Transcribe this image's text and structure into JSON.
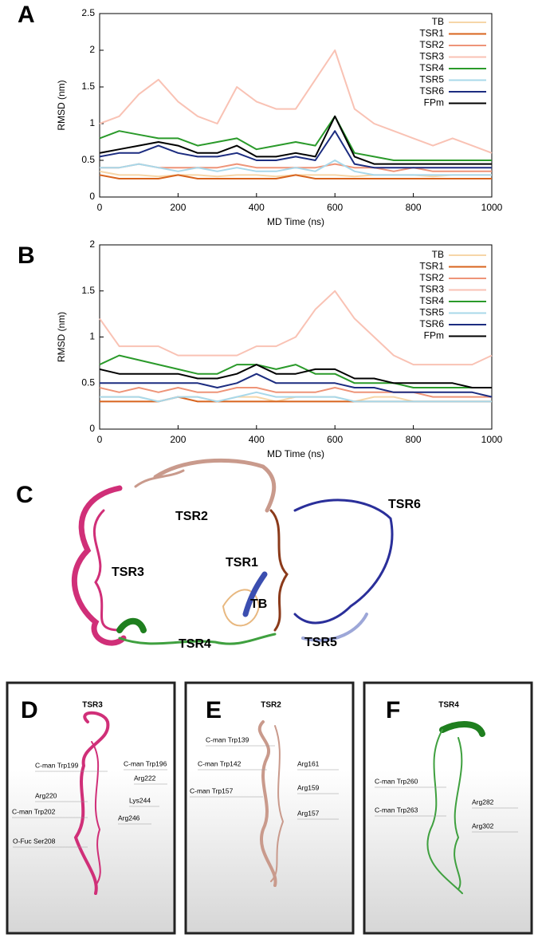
{
  "chart_data": [
    {
      "type": "line",
      "label": "A",
      "xlabel": "MD Time (ns)",
      "ylabel": "RMSD (nm)",
      "x": [
        0,
        50,
        100,
        150,
        200,
        250,
        300,
        350,
        400,
        450,
        500,
        550,
        600,
        650,
        700,
        750,
        800,
        850,
        900,
        950,
        1000
      ],
      "xlim": [
        0,
        1000
      ],
      "xticks": [
        0,
        200,
        400,
        600,
        800,
        1000
      ],
      "ylim": [
        0,
        2.5
      ],
      "yticks": [
        0,
        0.5,
        1,
        1.5,
        2,
        2.5
      ],
      "series": [
        {
          "name": "TB",
          "color": "#f6d6a8",
          "values": [
            0.35,
            0.3,
            0.3,
            0.28,
            0.3,
            0.3,
            0.28,
            0.3,
            0.3,
            0.28,
            0.3,
            0.3,
            0.3,
            0.28,
            0.3,
            0.3,
            0.3,
            0.28,
            0.3,
            0.3,
            0.3
          ]
        },
        {
          "name": "TSR1",
          "color": "#d8641e",
          "values": [
            0.3,
            0.25,
            0.25,
            0.25,
            0.3,
            0.25,
            0.25,
            0.25,
            0.25,
            0.25,
            0.3,
            0.25,
            0.25,
            0.25,
            0.25,
            0.25,
            0.25,
            0.25,
            0.25,
            0.25,
            0.25
          ]
        },
        {
          "name": "TSR2",
          "color": "#ee9478",
          "values": [
            0.4,
            0.4,
            0.45,
            0.4,
            0.4,
            0.4,
            0.4,
            0.45,
            0.4,
            0.4,
            0.4,
            0.4,
            0.45,
            0.4,
            0.4,
            0.35,
            0.4,
            0.35,
            0.35,
            0.35,
            0.35
          ]
        },
        {
          "name": "TSR3",
          "color": "#f9c2b4",
          "values": [
            1.0,
            1.1,
            1.4,
            1.6,
            1.3,
            1.1,
            1.0,
            1.5,
            1.3,
            1.2,
            1.2,
            1.6,
            2.0,
            1.2,
            1.0,
            0.9,
            0.8,
            0.7,
            0.8,
            0.7,
            0.6
          ]
        },
        {
          "name": "TSR4",
          "color": "#2a9a2a",
          "values": [
            0.8,
            0.9,
            0.85,
            0.8,
            0.8,
            0.7,
            0.75,
            0.8,
            0.65,
            0.7,
            0.75,
            0.7,
            1.1,
            0.6,
            0.55,
            0.5,
            0.5,
            0.5,
            0.5,
            0.5,
            0.5
          ]
        },
        {
          "name": "TSR5",
          "color": "#a8d8ea",
          "values": [
            0.4,
            0.4,
            0.45,
            0.4,
            0.35,
            0.4,
            0.35,
            0.4,
            0.35,
            0.35,
            0.4,
            0.35,
            0.5,
            0.35,
            0.3,
            0.3,
            0.3,
            0.3,
            0.3,
            0.3,
            0.3
          ]
        },
        {
          "name": "TSR6",
          "color": "#1c2c80",
          "values": [
            0.55,
            0.6,
            0.6,
            0.7,
            0.6,
            0.55,
            0.55,
            0.6,
            0.5,
            0.5,
            0.55,
            0.5,
            0.9,
            0.45,
            0.4,
            0.4,
            0.4,
            0.4,
            0.4,
            0.4,
            0.4
          ]
        },
        {
          "name": "FPm",
          "color": "#000000",
          "values": [
            0.6,
            0.65,
            0.7,
            0.75,
            0.7,
            0.6,
            0.6,
            0.7,
            0.55,
            0.55,
            0.6,
            0.55,
            1.1,
            0.55,
            0.45,
            0.45,
            0.45,
            0.45,
            0.45,
            0.45,
            0.45
          ]
        }
      ]
    },
    {
      "type": "line",
      "label": "B",
      "xlabel": "MD Time (ns)",
      "ylabel": "RMSD (nm)",
      "x": [
        0,
        50,
        100,
        150,
        200,
        250,
        300,
        350,
        400,
        450,
        500,
        550,
        600,
        650,
        700,
        750,
        800,
        850,
        900,
        950,
        1000
      ],
      "xlim": [
        0,
        1000
      ],
      "xticks": [
        0,
        200,
        400,
        600,
        800,
        1000
      ],
      "ylim": [
        0,
        2
      ],
      "yticks": [
        0,
        0.5,
        1,
        1.5,
        2
      ],
      "series": [
        {
          "name": "TB",
          "color": "#f6d6a8",
          "values": [
            0.35,
            0.35,
            0.35,
            0.3,
            0.35,
            0.35,
            0.3,
            0.35,
            0.35,
            0.3,
            0.35,
            0.35,
            0.35,
            0.3,
            0.35,
            0.35,
            0.3,
            0.3,
            0.3,
            0.3,
            0.3
          ]
        },
        {
          "name": "TSR1",
          "color": "#d8641e",
          "values": [
            0.3,
            0.3,
            0.3,
            0.3,
            0.35,
            0.3,
            0.3,
            0.3,
            0.3,
            0.3,
            0.3,
            0.3,
            0.3,
            0.3,
            0.3,
            0.3,
            0.3,
            0.3,
            0.3,
            0.3,
            0.3
          ]
        },
        {
          "name": "TSR2",
          "color": "#ee9478",
          "values": [
            0.45,
            0.4,
            0.45,
            0.4,
            0.45,
            0.4,
            0.4,
            0.45,
            0.45,
            0.4,
            0.4,
            0.4,
            0.45,
            0.4,
            0.4,
            0.4,
            0.4,
            0.35,
            0.35,
            0.35,
            0.35
          ]
        },
        {
          "name": "TSR3",
          "color": "#f9c2b4",
          "values": [
            1.2,
            0.9,
            0.9,
            0.9,
            0.8,
            0.8,
            0.8,
            0.8,
            0.9,
            0.9,
            1.0,
            1.3,
            1.5,
            1.2,
            1.0,
            0.8,
            0.7,
            0.7,
            0.7,
            0.7,
            0.8
          ]
        },
        {
          "name": "TSR4",
          "color": "#2a9a2a",
          "values": [
            0.7,
            0.8,
            0.75,
            0.7,
            0.65,
            0.6,
            0.6,
            0.7,
            0.7,
            0.65,
            0.7,
            0.6,
            0.6,
            0.5,
            0.5,
            0.5,
            0.45,
            0.45,
            0.45,
            0.45,
            0.45
          ]
        },
        {
          "name": "TSR5",
          "color": "#a8d8ea",
          "values": [
            0.35,
            0.35,
            0.35,
            0.3,
            0.35,
            0.35,
            0.3,
            0.35,
            0.4,
            0.35,
            0.35,
            0.35,
            0.35,
            0.3,
            0.3,
            0.3,
            0.3,
            0.3,
            0.3,
            0.3,
            0.3
          ]
        },
        {
          "name": "TSR6",
          "color": "#1c2c80",
          "values": [
            0.5,
            0.5,
            0.5,
            0.5,
            0.5,
            0.5,
            0.45,
            0.5,
            0.6,
            0.5,
            0.5,
            0.5,
            0.5,
            0.45,
            0.45,
            0.4,
            0.4,
            0.4,
            0.4,
            0.4,
            0.35
          ]
        },
        {
          "name": "FPm",
          "color": "#000000",
          "values": [
            0.65,
            0.6,
            0.6,
            0.6,
            0.6,
            0.55,
            0.55,
            0.6,
            0.7,
            0.6,
            0.6,
            0.65,
            0.65,
            0.55,
            0.55,
            0.5,
            0.5,
            0.5,
            0.5,
            0.45,
            0.45
          ]
        }
      ]
    }
  ],
  "structure_panel": {
    "label": "C",
    "domains": [
      "TSR2",
      "TSR1",
      "TSR6",
      "TSR3",
      "TB",
      "TSR4",
      "TSR5"
    ]
  },
  "detail_panels": [
    {
      "label": "D",
      "title": "TSR3",
      "residues": [
        "C-man Trp199",
        "C-man Trp196",
        "Arg222",
        "Arg220",
        "Lys244",
        "C-man Trp202",
        "Arg246",
        "O-Fuc Ser208"
      ]
    },
    {
      "label": "E",
      "title": "TSR2",
      "residues": [
        "C-man Trp139",
        "Arg161",
        "C-man Trp142",
        "Arg159",
        "C-man Trp157",
        "Arg157"
      ]
    },
    {
      "label": "F",
      "title": "TSR4",
      "residues": [
        "C-man Trp260",
        "Arg282",
        "C-man Trp263",
        "Arg302"
      ]
    }
  ]
}
